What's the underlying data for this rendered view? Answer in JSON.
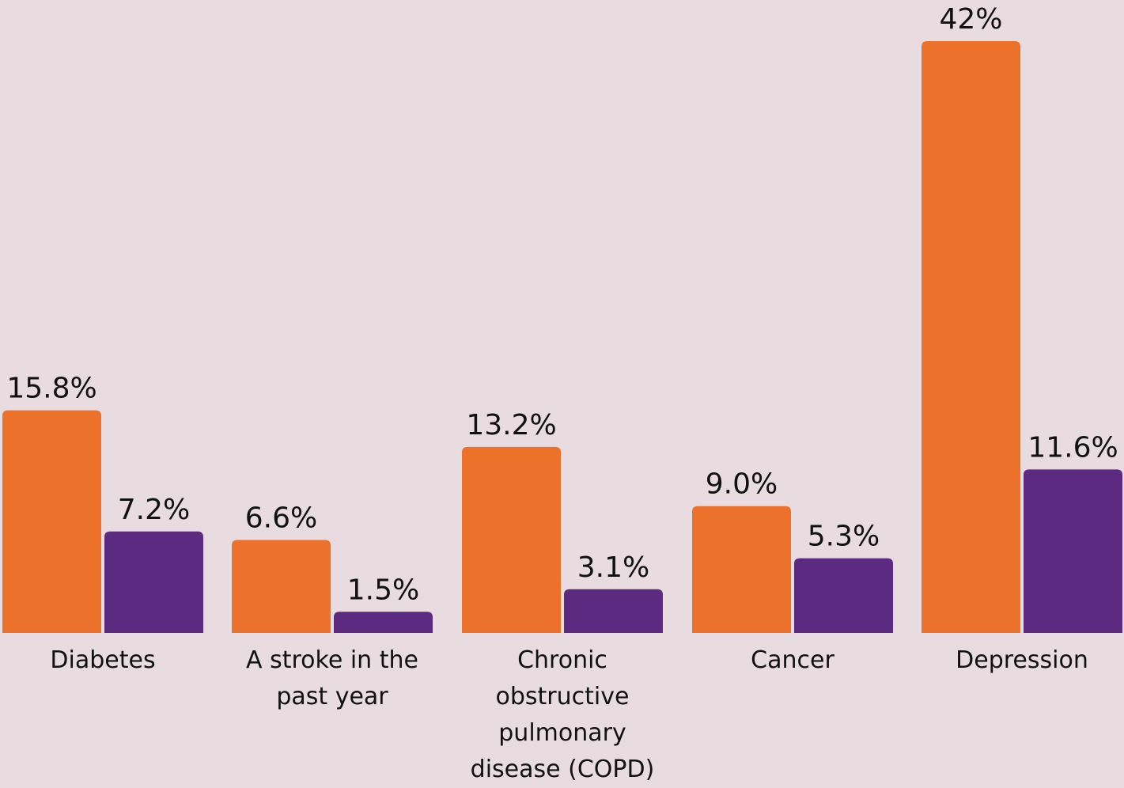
{
  "chart_data": {
    "type": "bar",
    "categories": [
      "Diabetes",
      "A stroke in the\npast year",
      "Chronic\nobstructive\npulmonary\ndisease (COPD)",
      "Cancer",
      "Depression"
    ],
    "series": [
      {
        "color": "#ec712a",
        "values": [
          15.8,
          6.6,
          13.2,
          9.0,
          42
        ],
        "labels": [
          "15.8%",
          "6.6%",
          "13.2%",
          "9.0%",
          "42%"
        ]
      },
      {
        "color": "#5c2a80",
        "values": [
          7.2,
          1.5,
          3.1,
          5.3,
          11.6
        ],
        "labels": [
          "7.2%",
          "1.5%",
          "3.1%",
          "5.3%",
          "11.6%"
        ]
      }
    ],
    "ylim": [
      0,
      42
    ],
    "grid": false,
    "legend": "none"
  },
  "colors": {
    "background": "#e8dce0",
    "text": "#111111"
  }
}
